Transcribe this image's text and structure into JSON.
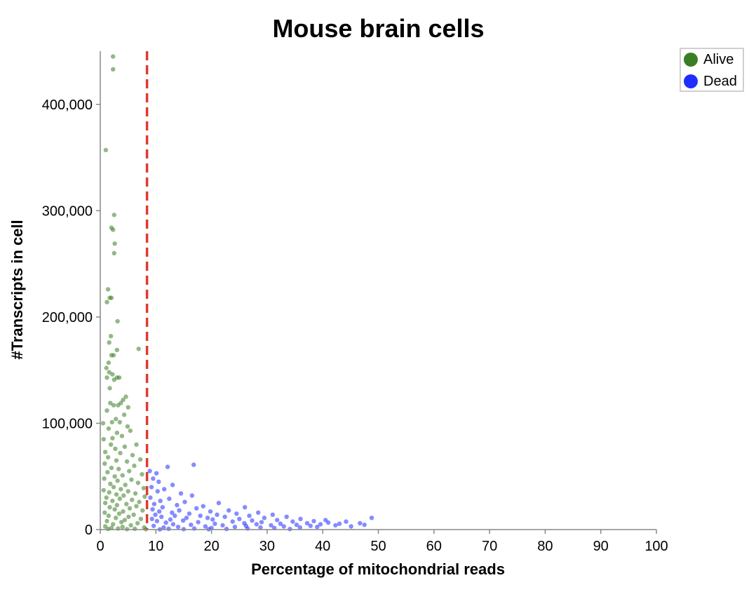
{
  "chart_data": {
    "type": "scatter",
    "title": "Mouse brain cells",
    "xlabel": "Percentage of mitochondrial reads",
    "ylabel": "#Transcripts in cell",
    "xlim": [
      0,
      100
    ],
    "ylim": [
      0,
      450000
    ],
    "xticks": [
      0,
      10,
      20,
      30,
      40,
      50,
      60,
      70,
      80,
      90,
      100
    ],
    "yticks": [
      0,
      100000,
      200000,
      300000,
      400000
    ],
    "xtick_labels": [
      "0",
      "10",
      "20",
      "30",
      "40",
      "50",
      "60",
      "70",
      "80",
      "90",
      "100"
    ],
    "ytick_labels": [
      "0",
      "100,000",
      "200,000",
      "300,000",
      "400,000"
    ],
    "threshold_x": 8.4,
    "threshold_color": "#e03a2f",
    "grid": false,
    "legend_position": "top-right",
    "series": [
      {
        "name": "Alive",
        "color": "#3a7d22",
        "points": [
          [
            2.3,
            445000
          ],
          [
            2.3,
            433000
          ],
          [
            1.0,
            357000
          ],
          [
            2.5,
            296000
          ],
          [
            2.0,
            284000
          ],
          [
            2.3,
            282000
          ],
          [
            2.6,
            269000
          ],
          [
            2.5,
            260000
          ],
          [
            1.4,
            226000
          ],
          [
            2.0,
            218000
          ],
          [
            1.2,
            214000
          ],
          [
            1.7,
            218000
          ],
          [
            3.1,
            196000
          ],
          [
            1.9,
            182000
          ],
          [
            1.6,
            176000
          ],
          [
            3.0,
            169000
          ],
          [
            6.9,
            170000
          ],
          [
            2.0,
            164000
          ],
          [
            2.4,
            164000
          ],
          [
            1.5,
            157000
          ],
          [
            1.1,
            152000
          ],
          [
            1.6,
            148000
          ],
          [
            2.2,
            146000
          ],
          [
            1.2,
            143000
          ],
          [
            2.5,
            141000
          ],
          [
            3.0,
            143000
          ],
          [
            3.4,
            143000
          ],
          [
            1.7,
            133000
          ],
          [
            4.6,
            125000
          ],
          [
            4.1,
            122000
          ],
          [
            1.8,
            119000
          ],
          [
            2.4,
            117000
          ],
          [
            3.2,
            117000
          ],
          [
            3.7,
            119000
          ],
          [
            5.0,
            115000
          ],
          [
            1.2,
            112000
          ],
          [
            4.3,
            108000
          ],
          [
            2.8,
            104000
          ],
          [
            3.5,
            101000
          ],
          [
            2.1,
            101000
          ],
          [
            0.5,
            100000
          ],
          [
            4.9,
            97000
          ],
          [
            1.5,
            95000
          ],
          [
            3.0,
            91000
          ],
          [
            5.4,
            93000
          ],
          [
            0.6,
            85000
          ],
          [
            2.2,
            86000
          ],
          [
            3.9,
            88000
          ],
          [
            6.5,
            80000
          ],
          [
            1.9,
            80000
          ],
          [
            4.4,
            78000
          ],
          [
            2.7,
            76000
          ],
          [
            0.9,
            73000
          ],
          [
            3.6,
            72000
          ],
          [
            5.8,
            70000
          ],
          [
            1.4,
            68000
          ],
          [
            7.2,
            66000
          ],
          [
            2.9,
            65000
          ],
          [
            4.8,
            64000
          ],
          [
            0.8,
            62000
          ],
          [
            6.1,
            60000
          ],
          [
            2.0,
            58000
          ],
          [
            3.3,
            57000
          ],
          [
            5.2,
            55000
          ],
          [
            1.3,
            54000
          ],
          [
            7.5,
            52000
          ],
          [
            4.0,
            51000
          ],
          [
            2.6,
            50000
          ],
          [
            0.7,
            48000
          ],
          [
            5.6,
            47000
          ],
          [
            3.1,
            46000
          ],
          [
            6.8,
            44000
          ],
          [
            1.8,
            43000
          ],
          [
            4.5,
            42000
          ],
          [
            2.4,
            40000
          ],
          [
            7.8,
            39000
          ],
          [
            3.7,
            38000
          ],
          [
            0.6,
            37000
          ],
          [
            5.0,
            36000
          ],
          [
            1.6,
            35000
          ],
          [
            6.3,
            34000
          ],
          [
            2.9,
            33000
          ],
          [
            4.2,
            32000
          ],
          [
            8.0,
            31000
          ],
          [
            1.1,
            30000
          ],
          [
            3.5,
            29000
          ],
          [
            5.7,
            28000
          ],
          [
            2.2,
            27000
          ],
          [
            7.0,
            26000
          ],
          [
            0.9,
            25000
          ],
          [
            4.7,
            24000
          ],
          [
            3.0,
            23000
          ],
          [
            6.5,
            22000
          ],
          [
            1.7,
            21000
          ],
          [
            5.3,
            20000
          ],
          [
            2.6,
            19000
          ],
          [
            7.6,
            18000
          ],
          [
            4.1,
            17000
          ],
          [
            0.8,
            16000
          ],
          [
            3.4,
            15000
          ],
          [
            6.0,
            14000
          ],
          [
            1.5,
            13000
          ],
          [
            5.1,
            12000
          ],
          [
            2.8,
            11000
          ],
          [
            7.3,
            10000
          ],
          [
            4.4,
            9000
          ],
          [
            1.2,
            8000
          ],
          [
            3.8,
            7000
          ],
          [
            6.7,
            6000
          ],
          [
            2.3,
            5000
          ],
          [
            5.5,
            4000
          ],
          [
            0.9,
            3000
          ],
          [
            4.0,
            2500
          ],
          [
            7.9,
            2000
          ],
          [
            2.0,
            1500
          ],
          [
            3.2,
            1000
          ],
          [
            6.2,
            800
          ],
          [
            1.4,
            600
          ],
          [
            4.8,
            400
          ],
          [
            8.2,
            300
          ]
        ]
      },
      {
        "name": "Dead",
        "color": "#1f2eff",
        "points": [
          [
            16.8,
            61000
          ],
          [
            12.1,
            59000
          ],
          [
            8.9,
            55000
          ],
          [
            10.1,
            53000
          ],
          [
            9.5,
            48000
          ],
          [
            10.5,
            45000
          ],
          [
            13.0,
            42000
          ],
          [
            9.2,
            40000
          ],
          [
            11.5,
            38000
          ],
          [
            10.3,
            36000
          ],
          [
            14.5,
            34000
          ],
          [
            16.5,
            32000
          ],
          [
            9.0,
            30000
          ],
          [
            12.4,
            29000
          ],
          [
            10.8,
            27000
          ],
          [
            15.2,
            26000
          ],
          [
            21.3,
            25000
          ],
          [
            9.7,
            24000
          ],
          [
            13.8,
            23000
          ],
          [
            18.5,
            22000
          ],
          [
            11.2,
            21000
          ],
          [
            26.0,
            21000
          ],
          [
            17.3,
            20000
          ],
          [
            9.4,
            19000
          ],
          [
            14.2,
            18000
          ],
          [
            23.1,
            18000
          ],
          [
            10.6,
            17000
          ],
          [
            19.8,
            17000
          ],
          [
            12.9,
            16000
          ],
          [
            28.4,
            16000
          ],
          [
            16.0,
            15000
          ],
          [
            24.5,
            15000
          ],
          [
            9.9,
            14000
          ],
          [
            21.0,
            14000
          ],
          [
            31.0,
            14000
          ],
          [
            13.4,
            13000
          ],
          [
            18.0,
            13000
          ],
          [
            26.8,
            13000
          ],
          [
            11.0,
            12000
          ],
          [
            22.4,
            12000
          ],
          [
            33.5,
            12000
          ],
          [
            15.5,
            11000
          ],
          [
            19.3,
            11000
          ],
          [
            29.5,
            11000
          ],
          [
            48.8,
            11000
          ],
          [
            9.3,
            10000
          ],
          [
            25.0,
            10000
          ],
          [
            36.0,
            10000
          ],
          [
            12.6,
            9500
          ],
          [
            20.2,
            9500
          ],
          [
            31.8,
            9000
          ],
          [
            40.5,
            9000
          ],
          [
            14.9,
            8500
          ],
          [
            27.3,
            8500
          ],
          [
            38.4,
            8000
          ],
          [
            10.2,
            8000
          ],
          [
            23.8,
            7500
          ],
          [
            34.6,
            7500
          ],
          [
            44.2,
            7500
          ],
          [
            17.6,
            7000
          ],
          [
            29.0,
            7000
          ],
          [
            41.0,
            6500
          ],
          [
            11.8,
            6500
          ],
          [
            25.9,
            6000
          ],
          [
            37.2,
            6000
          ],
          [
            46.7,
            6000
          ],
          [
            20.6,
            5500
          ],
          [
            32.4,
            5500
          ],
          [
            43.0,
            5500
          ],
          [
            13.1,
            5000
          ],
          [
            28.1,
            5000
          ],
          [
            39.6,
            5000
          ],
          [
            16.3,
            4500
          ],
          [
            35.3,
            4500
          ],
          [
            47.5,
            4500
          ],
          [
            22.0,
            4000
          ],
          [
            30.7,
            4000
          ],
          [
            42.3,
            4000
          ],
          [
            9.6,
            3500
          ],
          [
            26.2,
            3500
          ],
          [
            37.8,
            3500
          ],
          [
            18.9,
            3000
          ],
          [
            33.0,
            3000
          ],
          [
            45.1,
            3000
          ],
          [
            14.0,
            2500
          ],
          [
            24.2,
            2500
          ],
          [
            39.0,
            2500
          ],
          [
            11.4,
            2000
          ],
          [
            28.8,
            2000
          ],
          [
            35.9,
            2000
          ],
          [
            20.0,
            1500
          ],
          [
            31.3,
            1500
          ],
          [
            16.9,
            1000
          ],
          [
            26.5,
            1000
          ],
          [
            12.3,
            800
          ],
          [
            22.7,
            600
          ],
          [
            34.1,
            500
          ],
          [
            15.0,
            400
          ],
          [
            19.5,
            300
          ],
          [
            10.7,
            200
          ]
        ]
      }
    ]
  }
}
